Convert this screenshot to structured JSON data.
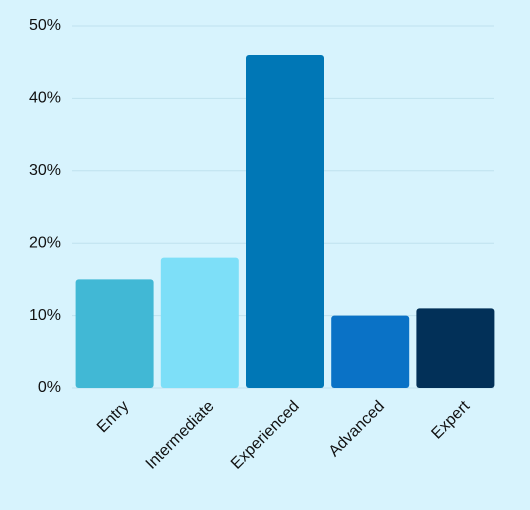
{
  "chart_data": {
    "type": "bar",
    "categories": [
      "Entry",
      "Intermediate",
      "Experienced",
      "Advanced",
      "Expert"
    ],
    "values": [
      15,
      18,
      46,
      10,
      11
    ],
    "colors": [
      "#41b8d5",
      "#7ddff8",
      "#0077b6",
      "#0a72c6",
      "#023058"
    ],
    "ylim": [
      0,
      50
    ],
    "yticks": [
      {
        "value": 0,
        "label": "0%"
      },
      {
        "value": 10,
        "label": "10%"
      },
      {
        "value": 20,
        "label": "20%"
      },
      {
        "value": 30,
        "label": "30%"
      },
      {
        "value": 40,
        "label": "40%"
      },
      {
        "value": 50,
        "label": "50%"
      }
    ],
    "grid": true
  }
}
